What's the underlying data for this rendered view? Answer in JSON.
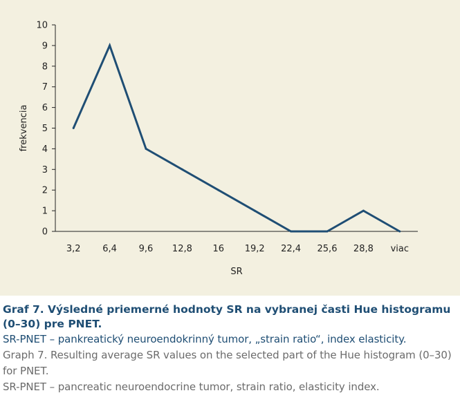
{
  "chart_data": {
    "type": "line",
    "categories": [
      "3,2",
      "6,4",
      "9,6",
      "12,8",
      "16",
      "19,2",
      "22,4",
      "25,6",
      "28,8",
      "viac"
    ],
    "series": [
      {
        "values": [
          5,
          9,
          4,
          3,
          2,
          1,
          0,
          0,
          1,
          0
        ]
      }
    ],
    "xlabel": "SR",
    "ylabel": "frekvencia",
    "ylim": [
      0,
      10
    ],
    "yticks": [
      0,
      1,
      2,
      3,
      4,
      5,
      6,
      7,
      8,
      9,
      10
    ],
    "grid": false,
    "line_color": "#1f4e74"
  },
  "caption": {
    "title": "Graf 7. Výsledné priemerné hodnoty SR na vybranej časti Hue histogramu (0–30) pre PNET.",
    "line_sk": "SR-PNET – pankreatický neuroendokrinný tumor, „strain ratio“, index elasticity.",
    "line_en1": "Graph 7. Resulting average SR values on the selected part of the Hue histogram (0–30) for PNET.",
    "line_en2": "SR-PNET – pancreatic neuroendocrine tumor, strain ratio, elasticity index."
  },
  "colors": {
    "panel_background": "#f3f0e0",
    "caption_dark": "#1f4e74",
    "caption_grey": "#6b6b6b"
  }
}
